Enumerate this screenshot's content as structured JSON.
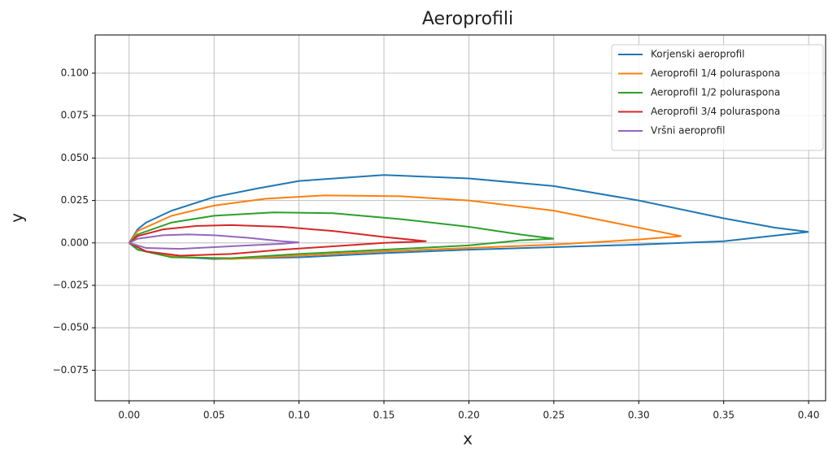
{
  "chart_data": {
    "type": "line",
    "title": "Aeroprofili",
    "xlabel": "x",
    "ylabel": "y",
    "xlim": [
      -0.02,
      0.41
    ],
    "ylim": [
      -0.093,
      0.1225
    ],
    "grid": true,
    "legend": "upper right",
    "xticks": [
      {
        "value": 0,
        "label": "0.00"
      },
      {
        "value": 0.05,
        "label": "0.05"
      },
      {
        "value": 0.1,
        "label": "0.10"
      },
      {
        "value": 0.15,
        "label": "0.15"
      },
      {
        "value": 0.2,
        "label": "0.20"
      },
      {
        "value": 0.25,
        "label": "0.25"
      },
      {
        "value": 0.3,
        "label": "0.30"
      },
      {
        "value": 0.35,
        "label": "0.35"
      },
      {
        "value": 0.4,
        "label": "0.40"
      }
    ],
    "yticks": [
      {
        "value": -0.075,
        "label": "−0.075"
      },
      {
        "value": -0.05,
        "label": "−0.050"
      },
      {
        "value": -0.025,
        "label": "−0.025"
      },
      {
        "value": 0,
        "label": "0.000"
      },
      {
        "value": 0.025,
        "label": "0.025"
      },
      {
        "value": 0.05,
        "label": "0.050"
      },
      {
        "value": 0.075,
        "label": "0.075"
      },
      {
        "value": 0.1,
        "label": "0.100"
      }
    ],
    "series": [
      {
        "name": "Korjenski aeroprofil",
        "color": "#1f77b4",
        "x": [
          0,
          0.005,
          0.01,
          0.025,
          0.05,
          0.075,
          0.1,
          0.15,
          0.2,
          0.25,
          0.3,
          0.35,
          0.38,
          0.4,
          0.35,
          0.3,
          0.25,
          0.2,
          0.15,
          0.1,
          0.05,
          0.025,
          0.01,
          0
        ],
        "y": [
          0,
          0.008,
          0.012,
          0.019,
          0.027,
          0.032,
          0.0365,
          0.04,
          0.038,
          0.0335,
          0.025,
          0.0145,
          0.009,
          0.0065,
          0.001,
          -0.001,
          -0.0025,
          -0.004,
          -0.006,
          -0.0085,
          -0.0095,
          -0.008,
          -0.005,
          0
        ]
      },
      {
        "name": "Aeroprofil 1/4 poluraspona",
        "color": "#ff7f0e",
        "x": [
          0,
          0.005,
          0.025,
          0.05,
          0.08,
          0.115,
          0.16,
          0.2,
          0.25,
          0.3,
          0.325,
          0.3,
          0.25,
          0.2,
          0.15,
          0.1,
          0.06,
          0.025,
          0.005,
          0
        ],
        "y": [
          0,
          0.007,
          0.016,
          0.022,
          0.026,
          0.028,
          0.0275,
          0.025,
          0.019,
          0.009,
          0.004,
          0.002,
          -0.001,
          -0.003,
          -0.005,
          -0.0075,
          -0.0095,
          -0.008,
          -0.004,
          0
        ]
      },
      {
        "name": "Aeroprofil 1/2 poluraspona",
        "color": "#2ca02c",
        "x": [
          0,
          0.005,
          0.025,
          0.05,
          0.085,
          0.12,
          0.16,
          0.2,
          0.23,
          0.25,
          0.23,
          0.2,
          0.15,
          0.1,
          0.06,
          0.025,
          0.005,
          0
        ],
        "y": [
          0,
          0.005,
          0.012,
          0.016,
          0.018,
          0.0175,
          0.014,
          0.0095,
          0.005,
          0.0025,
          0.0015,
          -0.0015,
          -0.004,
          -0.0065,
          -0.009,
          -0.0085,
          -0.004,
          0
        ]
      },
      {
        "name": "Aeroprofil 3/4 poluraspona",
        "color": "#d62728",
        "x": [
          0,
          0.005,
          0.02,
          0.04,
          0.06,
          0.09,
          0.12,
          0.15,
          0.175,
          0.15,
          0.12,
          0.09,
          0.06,
          0.03,
          0.01,
          0
        ],
        "y": [
          0,
          0.004,
          0.008,
          0.01,
          0.0105,
          0.0095,
          0.007,
          0.0035,
          0.001,
          0,
          -0.002,
          -0.004,
          -0.0065,
          -0.0075,
          -0.005,
          0
        ]
      },
      {
        "name": "Vršni aeroprofil",
        "color": "#9467bd",
        "x": [
          0,
          0.005,
          0.02,
          0.035,
          0.05,
          0.07,
          0.09,
          0.1,
          0.09,
          0.07,
          0.05,
          0.03,
          0.01,
          0
        ],
        "y": [
          0,
          0.0025,
          0.0045,
          0.005,
          0.0045,
          0.003,
          0.001,
          0.0003,
          -0.0005,
          -0.0015,
          -0.0025,
          -0.0035,
          -0.003,
          0
        ]
      }
    ]
  }
}
